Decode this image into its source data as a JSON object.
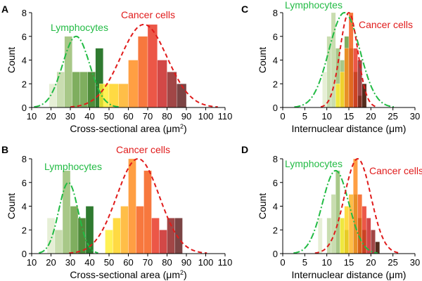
{
  "figure": {
    "colors": {
      "lymph_curve": "#22bb44",
      "cancer_curve": "#e01b1b",
      "axis": "#000000",
      "lymph_ramp": [
        "#e6efd6",
        "#c9ddb0",
        "#a8c888",
        "#7fae5f",
        "#4f8c3a",
        "#2f7a30"
      ],
      "cancer_ramp": [
        "#ffee30",
        "#ffd21a",
        "#ffb020",
        "#ff8a1a",
        "#f55a14",
        "#e8321e",
        "#c8201e",
        "#8c1d1d",
        "#5e1b1b"
      ]
    }
  },
  "chart_data": [
    {
      "id": "panel-a",
      "type": "histogram",
      "panel_label": "A",
      "xlabel": "Cross-sectional area (μm²)",
      "xlabel_main": "Cross-sectional area (",
      "xlabel_unit": "μm",
      "xlabel_sup": "2",
      "xlabel_tail": ")",
      "ylabel": "Count",
      "xlim": [
        10,
        110
      ],
      "ylim": [
        0,
        8
      ],
      "xticks": [
        10,
        20,
        30,
        40,
        50,
        60,
        70,
        80,
        90,
        100,
        110
      ],
      "yticks": [
        0,
        2,
        4,
        6,
        8
      ],
      "legend": [
        "Lymphocytes",
        "Cancer cells"
      ],
      "series": [
        {
          "name": "Lymphocytes",
          "bin_width": 4,
          "bins": [
            {
              "x0": 19,
              "count": 2
            },
            {
              "x0": 23,
              "count": 3
            },
            {
              "x0": 27,
              "count": 6
            },
            {
              "x0": 31,
              "count": 3
            },
            {
              "x0": 35,
              "count": 3
            },
            {
              "x0": 39,
              "count": 3
            },
            {
              "x0": 43,
              "count": 5
            }
          ],
          "fit": {
            "mean": 33,
            "sd": 7,
            "peak": 6
          }
        },
        {
          "name": "Cancer cells",
          "bin_width": 5,
          "bins": [
            {
              "x0": 45,
              "count": 2
            },
            {
              "x0": 50,
              "count": 2
            },
            {
              "x0": 55,
              "count": 2
            },
            {
              "x0": 60,
              "count": 4
            },
            {
              "x0": 65,
              "count": 6
            },
            {
              "x0": 70,
              "count": 7
            },
            {
              "x0": 75,
              "count": 4
            },
            {
              "x0": 80,
              "count": 3
            },
            {
              "x0": 85,
              "count": 2
            }
          ],
          "fit": {
            "mean": 68,
            "sd": 12,
            "peak": 7
          }
        }
      ]
    },
    {
      "id": "panel-b",
      "type": "histogram",
      "panel_label": "B",
      "xlabel": "Cross-sectional area (μm²)",
      "xlabel_main": "Cross-sectional area (",
      "xlabel_unit": "μm",
      "xlabel_sup": "2",
      "xlabel_tail": ")",
      "ylabel": "Count",
      "xlim": [
        10,
        110
      ],
      "ylim": [
        0,
        8
      ],
      "xticks": [
        10,
        20,
        30,
        40,
        50,
        60,
        70,
        80,
        90,
        100,
        110
      ],
      "yticks": [
        0,
        2,
        4,
        6,
        8
      ],
      "legend": [
        "Lymphocytes",
        "Cancer cells"
      ],
      "series": [
        {
          "name": "Lymphocytes",
          "bin_width": 4,
          "bins": [
            {
              "x0": 18,
              "count": 3
            },
            {
              "x0": 22,
              "count": 2
            },
            {
              "x0": 26,
              "count": 7
            },
            {
              "x0": 30,
              "count": 4
            },
            {
              "x0": 34,
              "count": 3
            },
            {
              "x0": 38,
              "count": 4
            }
          ],
          "fit": {
            "mean": 29,
            "sd": 5,
            "peak": 6
          }
        },
        {
          "name": "Cancer cells",
          "bin_width": 4,
          "bins": [
            {
              "x0": 48,
              "count": 2
            },
            {
              "x0": 52,
              "count": 3
            },
            {
              "x0": 56,
              "count": 4
            },
            {
              "x0": 60,
              "count": 8
            },
            {
              "x0": 64,
              "count": 4
            },
            {
              "x0": 68,
              "count": 7
            },
            {
              "x0": 72,
              "count": 3
            },
            {
              "x0": 76,
              "count": 2
            },
            {
              "x0": 80,
              "count": 3
            },
            {
              "x0": 84,
              "count": 3
            }
          ],
          "fit": {
            "mean": 65,
            "sd": 11,
            "peak": 8
          }
        }
      ]
    },
    {
      "id": "panel-c",
      "type": "histogram",
      "panel_label": "C",
      "xlabel": "Internuclear distance (μm)",
      "xlabel_main": "Internuclear distance (",
      "xlabel_unit": "μm",
      "xlabel_sup": "",
      "xlabel_tail": ")",
      "ylabel": "Count",
      "xlim": [
        0,
        30
      ],
      "ylim": [
        0,
        8
      ],
      "xticks": [
        0,
        5,
        10,
        15,
        20,
        25,
        30
      ],
      "yticks": [
        0,
        2,
        4,
        6,
        8
      ],
      "legend": [
        "Lymphocytes",
        "Cancer cells"
      ],
      "series": [
        {
          "name": "Lymphocytes",
          "bin_width": 1,
          "bins": [
            {
              "x0": 9,
              "count": 3
            },
            {
              "x0": 10,
              "count": 6
            },
            {
              "x0": 11,
              "count": 8
            },
            {
              "x0": 12,
              "count": 5
            },
            {
              "x0": 13,
              "count": 4
            },
            {
              "x0": 14,
              "count": 6
            },
            {
              "x0": 15,
              "count": 5
            },
            {
              "x0": 16,
              "count": 3
            },
            {
              "x0": 17,
              "count": 1
            },
            {
              "x0": 18,
              "count": 2
            }
          ],
          "fit": {
            "mean": 14,
            "sd": 3.5,
            "peak": 8
          }
        },
        {
          "name": "Cancer cells",
          "bin_width": 1,
          "bins": [
            {
              "x0": 12,
              "count": 2
            },
            {
              "x0": 13,
              "count": 3
            },
            {
              "x0": 14,
              "count": 5
            },
            {
              "x0": 15,
              "count": 8
            },
            {
              "x0": 16,
              "count": 5
            },
            {
              "x0": 17,
              "count": 4
            },
            {
              "x0": 18,
              "count": 2
            }
          ],
          "fit": {
            "mean": 15,
            "sd": 2,
            "peak": 8
          }
        }
      ]
    },
    {
      "id": "panel-d",
      "type": "histogram",
      "panel_label": "D",
      "xlabel": "Internuclear distance (μm)",
      "xlabel_main": "Internuclear distance (",
      "xlabel_unit": "μm",
      "xlabel_sup": "",
      "xlabel_tail": ")",
      "ylabel": "Count",
      "xlim": [
        0,
        30
      ],
      "ylim": [
        0,
        8
      ],
      "xticks": [
        0,
        5,
        10,
        15,
        20,
        25,
        30
      ],
      "yticks": [
        0,
        2,
        4,
        6,
        8
      ],
      "legend": [
        "Lymphocytes",
        "Cancer cells"
      ],
      "series": [
        {
          "name": "Lymphocytes",
          "bin_width": 1,
          "bins": [
            {
              "x0": 8,
              "count": 3
            },
            {
              "x0": 10,
              "count": 3
            },
            {
              "x0": 11,
              "count": 5
            },
            {
              "x0": 12,
              "count": 7
            },
            {
              "x0": 13,
              "count": 3
            },
            {
              "x0": 14,
              "count": 2
            },
            {
              "x0": 16,
              "count": 5
            },
            {
              "x0": 17,
              "count": 3
            },
            {
              "x0": 18,
              "count": 2
            },
            {
              "x0": 21,
              "count": 1
            }
          ],
          "fit": {
            "mean": 12,
            "sd": 3,
            "peak": 7
          }
        },
        {
          "name": "Cancer cells",
          "bin_width": 1,
          "bins": [
            {
              "x0": 13,
              "count": 3
            },
            {
              "x0": 14,
              "count": 4
            },
            {
              "x0": 15,
              "count": 5
            },
            {
              "x0": 16,
              "count": 8
            },
            {
              "x0": 17,
              "count": 5
            },
            {
              "x0": 18,
              "count": 4
            },
            {
              "x0": 19,
              "count": 3
            },
            {
              "x0": 20,
              "count": 2
            },
            {
              "x0": 21,
              "count": 1
            }
          ],
          "fit": {
            "mean": 17,
            "sd": 3,
            "peak": 8
          }
        }
      ]
    }
  ]
}
